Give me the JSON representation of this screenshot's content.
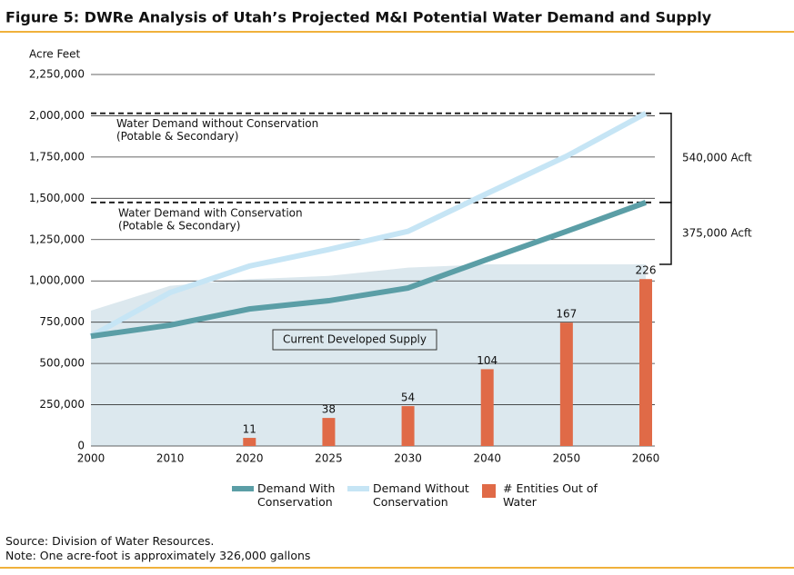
{
  "chart_data": {
    "type": "line",
    "title": "Figure 5: DWRe Analysis of Utah’s Projected M&I Potential Water Demand and Supply",
    "y_label": "Acre Feet",
    "categories": [
      "2000",
      "2010",
      "2020",
      "2025",
      "2030",
      "2040",
      "2050",
      "2060"
    ],
    "ylim": [
      0,
      2250000
    ],
    "yticks": [
      0,
      {
        "value": 250000,
        "label": "250,000"
      },
      {
        "value": 500000,
        "label": "500,000"
      },
      {
        "value": 750000,
        "label": "750,000"
      },
      {
        "value": 1000000,
        "label": "1,000,000"
      },
      {
        "value": 1250000,
        "label": "1,250,000"
      },
      {
        "value": 1500000,
        "label": "1,500,000"
      },
      {
        "value": 1750000,
        "label": "1,750,000"
      },
      {
        "value": 2000000,
        "label": "2,000,000"
      },
      {
        "value": 2250000,
        "label": "2,250,000"
      }
    ],
    "y2lim": [
      0,
      503
    ],
    "grid": true,
    "supply_area": {
      "name": "Current Developed Supply",
      "color": "#dce8ee",
      "values": [
        820000,
        970000,
        1010000,
        1030000,
        1080000,
        1100000,
        1100000,
        1100000
      ]
    },
    "series": [
      {
        "name": "Demand With Conservation",
        "type": "line",
        "color": "#5b9ea6",
        "values": [
          665000,
          732000,
          830000,
          880000,
          957000,
          1130000,
          1300000,
          1475000
        ]
      },
      {
        "name": "Demand Without Conservation",
        "type": "line",
        "color": "#c6e5f5",
        "values": [
          665000,
          930000,
          1090000,
          1190000,
          1300000,
          1530000,
          1755000,
          2015000
        ]
      },
      {
        "name": "# Entities Out of Water",
        "type": "bar",
        "axis": "y2",
        "color": "#e06a47",
        "values": [
          null,
          null,
          11,
          38,
          54,
          104,
          167,
          226
        ]
      }
    ],
    "reference_lines": [
      {
        "value": 2015000,
        "label": [
          "Water Demand without Conservation",
          "(Potable & Secondary)"
        ]
      },
      {
        "value": 1475000,
        "label": [
          "Water Demand with Conservation",
          "(Potable & Secondary)"
        ]
      }
    ],
    "brackets": [
      {
        "from": 2015000,
        "to": 1475000,
        "label": "540,000 Acft"
      },
      {
        "from": 1475000,
        "to": 1100000,
        "label": "375,000 Acft"
      }
    ],
    "source": "Source: Division of Water Resources.",
    "note": "Note: One acre-foot is approximately 326,000 gallons"
  }
}
